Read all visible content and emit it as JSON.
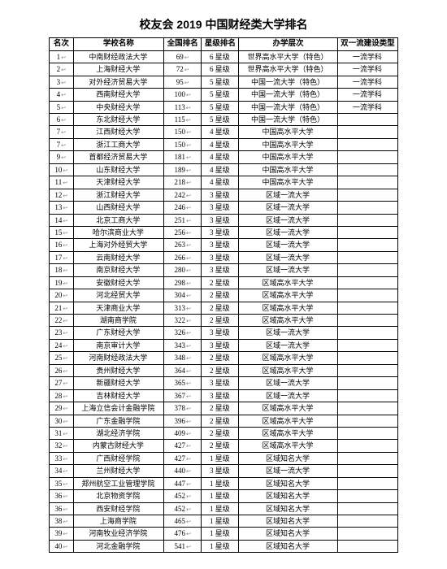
{
  "title": "校友会 2019 中国财经类大学排名",
  "columns": [
    "名次",
    "学校名称",
    "全国排名",
    "星级排名",
    "办学层次",
    "双一流建设类型"
  ],
  "rows": [
    [
      "1",
      "中南财经政法大学",
      "69",
      "6 星级",
      "世界高水平大学（特色）",
      "一流学科"
    ],
    [
      "2",
      "上海财经大学",
      "72",
      "6 星级",
      "世界高水平大学（特色）",
      "一流学科"
    ],
    [
      "3",
      "对外经济贸易大学",
      "95",
      "5 星级",
      "中国一流大学（特色）",
      "一流学科"
    ],
    [
      "4",
      "西南财经大学",
      "100",
      "5 星级",
      "中国一流大学（特色）",
      "一流学科"
    ],
    [
      "5",
      "中央财经大学",
      "113",
      "5 星级",
      "中国一流大学（特色）",
      "一流学科"
    ],
    [
      "6",
      "东北财经大学",
      "115",
      "5 星级",
      "中国一流大学（特色）",
      ""
    ],
    [
      "7",
      "江西财经大学",
      "150",
      "4 星级",
      "中国高水平大学",
      ""
    ],
    [
      "7",
      "浙江工商大学",
      "150",
      "4 星级",
      "中国高水平大学",
      ""
    ],
    [
      "9",
      "首都经济贸易大学",
      "181",
      "4 星级",
      "中国高水平大学",
      ""
    ],
    [
      "10",
      "山东财经大学",
      "189",
      "4 星级",
      "中国高水平大学",
      ""
    ],
    [
      "11",
      "天津财经大学",
      "218",
      "4 星级",
      "中国高水平大学",
      ""
    ],
    [
      "12",
      "浙江财经大学",
      "242",
      "3 星级",
      "区域一流大学",
      ""
    ],
    [
      "13",
      "山西财经大学",
      "246",
      "3 星级",
      "区域一流大学",
      ""
    ],
    [
      "14",
      "北京工商大学",
      "251",
      "3 星级",
      "区域一流大学",
      ""
    ],
    [
      "15",
      "哈尔滨商业大学",
      "256",
      "3 星级",
      "区域一流大学",
      ""
    ],
    [
      "16",
      "上海对外经贸大学",
      "263",
      "3 星级",
      "区域一流大学",
      ""
    ],
    [
      "17",
      "云南财经大学",
      "266",
      "3 星级",
      "区域一流大学",
      ""
    ],
    [
      "18",
      "南京财经大学",
      "280",
      "3 星级",
      "区域一流大学",
      ""
    ],
    [
      "19",
      "安徽财经大学",
      "298",
      "2 星级",
      "区域高水平大学",
      ""
    ],
    [
      "20",
      "河北经贸大学",
      "304",
      "2 星级",
      "区域高水平大学",
      ""
    ],
    [
      "21",
      "天津商业大学",
      "313",
      "2 星级",
      "区域高水平大学",
      ""
    ],
    [
      "22",
      "湖南商学院",
      "322",
      "2 星级",
      "区域高水平大学",
      ""
    ],
    [
      "23",
      "广东财经大学",
      "326",
      "3 星级",
      "区域一流大学",
      ""
    ],
    [
      "24",
      "南京审计大学",
      "343",
      "3 星级",
      "区域一流大学",
      ""
    ],
    [
      "25",
      "河南财经政法大学",
      "348",
      "2 星级",
      "区域高水平大学",
      ""
    ],
    [
      "26",
      "贵州财经大学",
      "364",
      "2 星级",
      "区域高水平大学",
      ""
    ],
    [
      "27",
      "新疆财经大学",
      "365",
      "3 星级",
      "区域一流大学",
      ""
    ],
    [
      "28",
      "吉林财经大学",
      "367",
      "3 星级",
      "区域一流大学",
      ""
    ],
    [
      "29",
      "上海立信会计金融学院",
      "378",
      "2 星级",
      "区域高水平大学",
      ""
    ],
    [
      "30",
      "广东金融学院",
      "396",
      "2 星级",
      "区域高水平大学",
      ""
    ],
    [
      "31",
      "湖北经济学院",
      "409",
      "2 星级",
      "区域高水平大学",
      ""
    ],
    [
      "32",
      "内蒙古财经大学",
      "427",
      "2 星级",
      "区域高水平大学",
      ""
    ],
    [
      "33",
      "广西财经学院",
      "427",
      "1 星级",
      "区域知名大学",
      ""
    ],
    [
      "34",
      "兰州财经大学",
      "440",
      "3 星级",
      "区域一流大学",
      ""
    ],
    [
      "35",
      "郑州航空工业管理学院",
      "447",
      "1 星级",
      "区域知名大学",
      ""
    ],
    [
      "36",
      "北京物资学院",
      "452",
      "1 星级",
      "区域知名大学",
      ""
    ],
    [
      "36",
      "西安财经学院",
      "452",
      "1 星级",
      "区域知名大学",
      ""
    ],
    [
      "38",
      "上海商学院",
      "465",
      "1 星级",
      "区域知名大学",
      ""
    ],
    [
      "39",
      "河南牧业经济学院",
      "476",
      "1 星级",
      "区域知名大学",
      ""
    ],
    [
      "40",
      "河北金融学院",
      "541",
      "1 星级",
      "区域知名大学",
      ""
    ]
  ]
}
